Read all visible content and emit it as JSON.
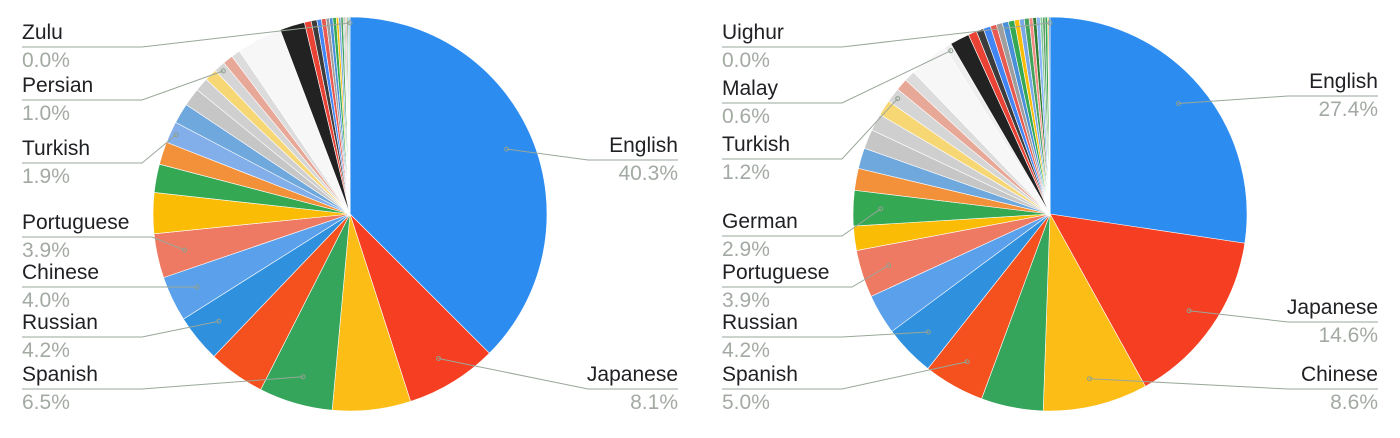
{
  "chart_data": [
    {
      "type": "pie",
      "start": "top, clockwise",
      "slices": [
        {
          "label": "English",
          "value": 40.3,
          "color": "#2d8cf0",
          "labeled": true
        },
        {
          "label": "Japanese",
          "value": 8.1,
          "color": "#f63e22",
          "labeled": true
        },
        {
          "label": "",
          "value": 6.9,
          "color": "#fbbd16"
        },
        {
          "label": "Spanish",
          "value": 6.5,
          "color": "#34a55b",
          "labeled": true
        },
        {
          "label": "",
          "value": 5.0,
          "color": "#f4511e"
        },
        {
          "label": "Russian",
          "value": 4.2,
          "color": "#2f90de",
          "labeled": true
        },
        {
          "label": "Chinese",
          "value": 4.0,
          "color": "#5aa0ea",
          "labeled": true
        },
        {
          "label": "Portuguese",
          "value": 3.9,
          "color": "#ee7a63",
          "labeled": true
        },
        {
          "label": "",
          "value": 3.6,
          "color": "#fbbc05"
        },
        {
          "label": "",
          "value": 2.5,
          "color": "#34a853"
        },
        {
          "label": "",
          "value": 2.0,
          "color": "#f3913a"
        },
        {
          "label": "Turkish",
          "value": 1.9,
          "color": "#82aeea"
        },
        {
          "label": "",
          "value": 1.8,
          "color": "#6fa8dc"
        },
        {
          "label": "",
          "value": 1.6,
          "color": "#c6c6c6"
        },
        {
          "label": "",
          "value": 1.2,
          "color": "#cfcfcf"
        },
        {
          "label": "",
          "value": 1.1,
          "color": "#f7d774"
        },
        {
          "label": "Persian",
          "value": 1.0,
          "color": "#d5d5d5"
        },
        {
          "label": "",
          "value": 0.9,
          "color": "#e8a898"
        },
        {
          "label": "",
          "value": 0.8,
          "color": "#dcdcdc"
        },
        {
          "label": "",
          "value": 4.0,
          "color": "#f7f7f7"
        },
        {
          "label": "",
          "value": 2.2,
          "color": "#222222"
        },
        {
          "label": "",
          "value": 0.6,
          "color": "#ea4335"
        },
        {
          "label": "",
          "value": 0.5,
          "color": "#3c3c3c"
        },
        {
          "label": "",
          "value": 0.4,
          "color": "#4285f4"
        },
        {
          "label": "",
          "value": 0.4,
          "color": "#e85a4f"
        },
        {
          "label": "",
          "value": 0.3,
          "color": "#9e9e9e"
        },
        {
          "label": "",
          "value": 0.3,
          "color": "#4a90d9"
        },
        {
          "label": "",
          "value": 0.3,
          "color": "#34a853"
        },
        {
          "label": "",
          "value": 0.2,
          "color": "#fbbc05"
        },
        {
          "label": "",
          "value": 0.2,
          "color": "#7aa8e6"
        },
        {
          "label": "",
          "value": 0.2,
          "color": "#43a35b"
        },
        {
          "label": "",
          "value": 0.1,
          "color": "#b0b0b0"
        },
        {
          "label": "",
          "value": 0.1,
          "color": "#5d9b6b"
        },
        {
          "label": "",
          "value": 0.1,
          "color": "#f28b82"
        },
        {
          "label": "",
          "value": 0.1,
          "color": "#2e7d32"
        },
        {
          "label": "",
          "value": 0.1,
          "color": "#8ab4f8"
        },
        {
          "label": "",
          "value": 0.1,
          "color": "#81c995"
        },
        {
          "label": "Zulu",
          "value": 0.0,
          "color": "#34a853"
        }
      ],
      "labels": [
        {
          "name": "Zulu",
          "pct": "0.0%"
        },
        {
          "name": "Persian",
          "pct": "1.0%"
        },
        {
          "name": "Turkish",
          "pct": "1.9%"
        },
        {
          "name": "Portuguese",
          "pct": "3.9%"
        },
        {
          "name": "Chinese",
          "pct": "4.0%"
        },
        {
          "name": "Russian",
          "pct": "4.2%"
        },
        {
          "name": "Spanish",
          "pct": "6.5%"
        },
        {
          "name": "English",
          "pct": "40.3%"
        },
        {
          "name": "Japanese",
          "pct": "8.1%"
        }
      ]
    },
    {
      "type": "pie",
      "start": "top, clockwise",
      "slices": [
        {
          "label": "English",
          "value": 27.4,
          "color": "#2d8cf0",
          "labeled": true
        },
        {
          "label": "Japanese",
          "value": 14.6,
          "color": "#f63e22",
          "labeled": true
        },
        {
          "label": "Chinese",
          "value": 8.6,
          "color": "#fbbd16",
          "labeled": true
        },
        {
          "label": "",
          "value": 5.1,
          "color": "#34a55b"
        },
        {
          "label": "Spanish",
          "value": 5.0,
          "color": "#f4511e",
          "labeled": true
        },
        {
          "label": "Russian",
          "value": 4.2,
          "color": "#2f90de",
          "labeled": true
        },
        {
          "label": "",
          "value": 3.3,
          "color": "#5aa0ea"
        },
        {
          "label": "Portuguese",
          "value": 3.9,
          "color": "#ee7a63",
          "labeled": true
        },
        {
          "label": "",
          "value": 2.0,
          "color": "#fbbc05"
        },
        {
          "label": "German",
          "value": 2.9,
          "color": "#34a853",
          "labeled": true
        },
        {
          "label": "",
          "value": 1.8,
          "color": "#f3913a"
        },
        {
          "label": "",
          "value": 1.7,
          "color": "#6fa8dc"
        },
        {
          "label": "",
          "value": 1.6,
          "color": "#c6c6c6"
        },
        {
          "label": "",
          "value": 1.4,
          "color": "#cfcfcf"
        },
        {
          "label": "",
          "value": 1.3,
          "color": "#f7d774"
        },
        {
          "label": "Turkish",
          "value": 1.2,
          "color": "#d5d5d5"
        },
        {
          "label": "",
          "value": 1.0,
          "color": "#e8a898"
        },
        {
          "label": "",
          "value": 0.9,
          "color": "#dcdcdc"
        },
        {
          "label": "",
          "value": 3.2,
          "color": "#f7f7f7"
        },
        {
          "label": "Malay",
          "value": 0.6,
          "color": "#efefef"
        },
        {
          "label": "",
          "value": 1.6,
          "color": "#222222"
        },
        {
          "label": "",
          "value": 0.7,
          "color": "#ea4335"
        },
        {
          "label": "",
          "value": 0.6,
          "color": "#3c3c3c"
        },
        {
          "label": "",
          "value": 0.6,
          "color": "#4285f4"
        },
        {
          "label": "",
          "value": 0.5,
          "color": "#e85a4f"
        },
        {
          "label": "",
          "value": 0.5,
          "color": "#9e9e9e"
        },
        {
          "label": "",
          "value": 0.5,
          "color": "#4a90d9"
        },
        {
          "label": "",
          "value": 0.5,
          "color": "#34a853"
        },
        {
          "label": "",
          "value": 0.4,
          "color": "#fbbc05"
        },
        {
          "label": "",
          "value": 0.4,
          "color": "#7aa8e6"
        },
        {
          "label": "",
          "value": 0.4,
          "color": "#43a35b"
        },
        {
          "label": "",
          "value": 0.3,
          "color": "#f28b82"
        },
        {
          "label": "",
          "value": 0.3,
          "color": "#2e7d32"
        },
        {
          "label": "",
          "value": 0.3,
          "color": "#8ab4f8"
        },
        {
          "label": "",
          "value": 0.2,
          "color": "#81c995"
        },
        {
          "label": "",
          "value": 0.2,
          "color": "#5d9b6b"
        },
        {
          "label": "",
          "value": 0.2,
          "color": "#34a853"
        },
        {
          "label": "",
          "value": 0.1,
          "color": "#f6ae2d"
        },
        {
          "label": "",
          "value": 0.1,
          "color": "#1e88e5"
        },
        {
          "label": "Uighur",
          "value": 0.0,
          "color": "#34a853"
        }
      ],
      "labels": [
        {
          "name": "Uighur",
          "pct": "0.0%"
        },
        {
          "name": "Malay",
          "pct": "0.6%"
        },
        {
          "name": "Turkish",
          "pct": "1.2%"
        },
        {
          "name": "German",
          "pct": "2.9%"
        },
        {
          "name": "Portuguese",
          "pct": "3.9%"
        },
        {
          "name": "Russian",
          "pct": "4.2%"
        },
        {
          "name": "Spanish",
          "pct": "5.0%"
        },
        {
          "name": "English",
          "pct": "27.4%"
        },
        {
          "name": "Japanese",
          "pct": "14.6%"
        },
        {
          "name": "Chinese",
          "pct": "8.6%"
        }
      ]
    }
  ]
}
